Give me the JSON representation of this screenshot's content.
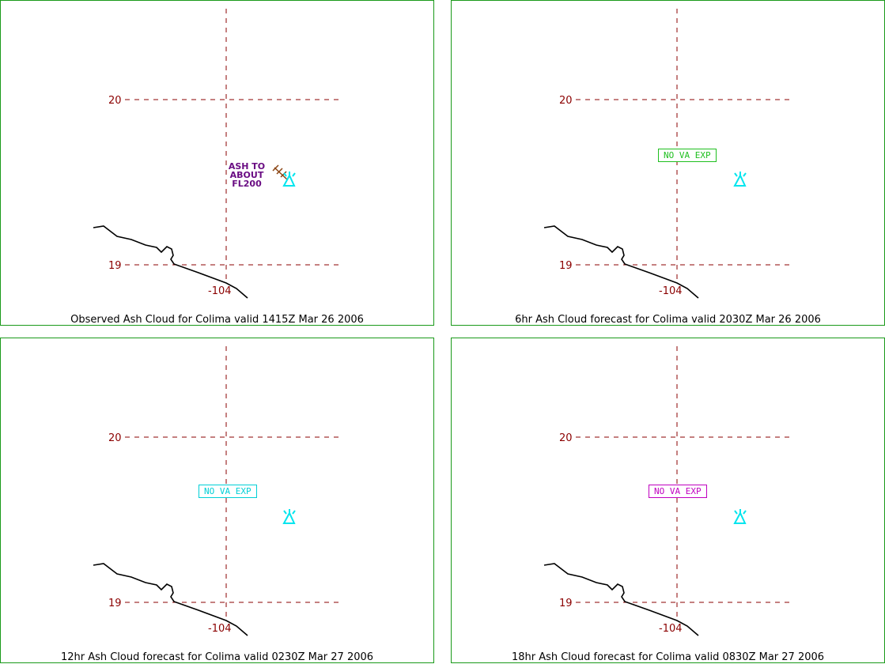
{
  "colors": {
    "frame": "#1a9a1a",
    "grid": "#8b0000",
    "coast": "#000000",
    "volcano": "#00e5ee",
    "ash_label": "#6a0d83",
    "ash_symbol": "#8b4513"
  },
  "panels": [
    {
      "caption": "Observed Ash Cloud for Colima valid 1415Z Mar 26 2006",
      "lat_labels": [
        "20",
        "19"
      ],
      "lon_label": "-104",
      "ash_label": [
        "ASH TO",
        "ABOUT",
        "FL200"
      ],
      "volcano_icon": "volcano-icon"
    },
    {
      "caption": "6hr Ash Cloud forecast for Colima valid 2030Z Mar 26 2006",
      "lat_labels": [
        "20",
        "19"
      ],
      "lon_label": "-104",
      "va_box": "NO VA EXP",
      "va_color": "#1fbf1f",
      "volcano_icon": "volcano-icon"
    },
    {
      "caption": "12hr Ash Cloud forecast for Colima valid 0230Z Mar 27 2006",
      "lat_labels": [
        "20",
        "19"
      ],
      "lon_label": "-104",
      "va_box": "NO VA EXP",
      "va_color": "#00cfd6",
      "volcano_icon": "volcano-icon"
    },
    {
      "caption": "18hr Ash Cloud forecast for Colima valid 0830Z Mar 27 2006",
      "lat_labels": [
        "20",
        "19"
      ],
      "lon_label": "-104",
      "va_box": "NO VA EXP",
      "va_color": "#c000c0",
      "volcano_icon": "volcano-icon"
    }
  ]
}
